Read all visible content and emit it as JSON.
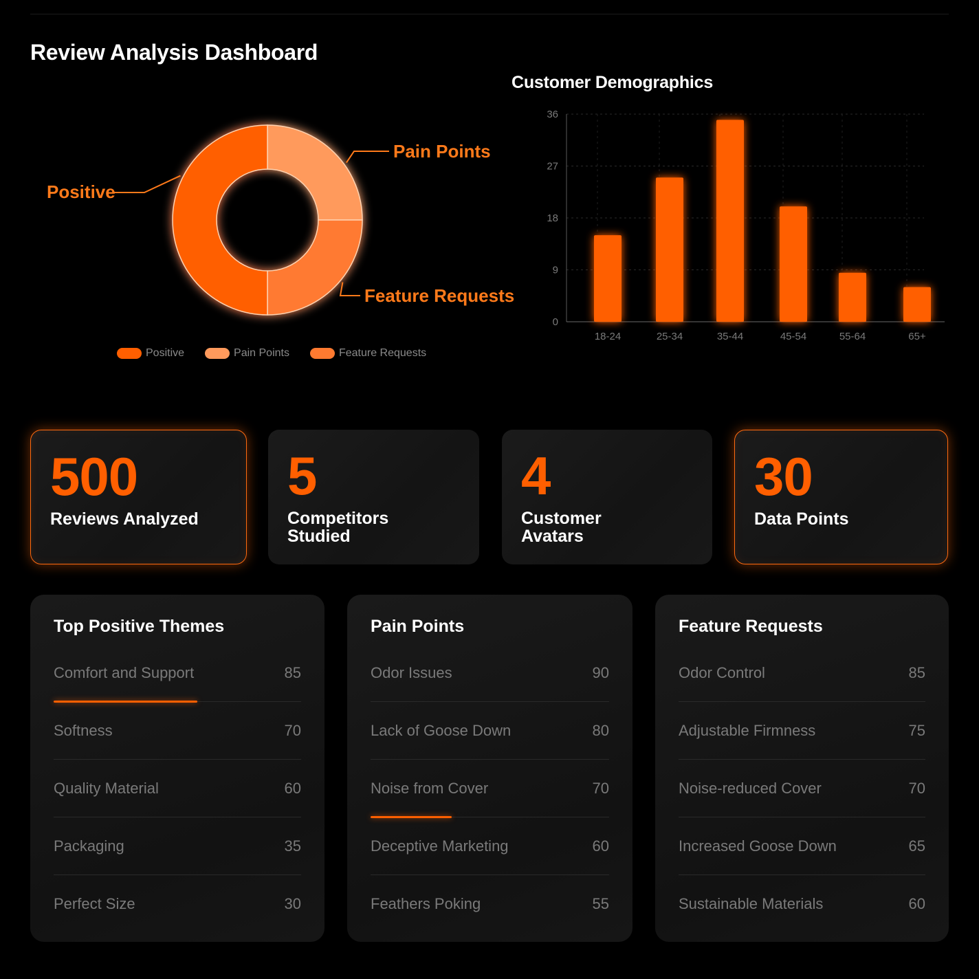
{
  "header": {
    "title": "Review Analysis Dashboard"
  },
  "colors": {
    "accent": "#ff5f00",
    "positive": "#ff5f00",
    "pain_points": "#ff9a5c",
    "feature_requests": "#ff7a30",
    "background": "#000000",
    "card": "#161616"
  },
  "chart_data": [
    {
      "type": "pie",
      "style": "donut",
      "title": "",
      "labels": [
        "Positive",
        "Pain Points",
        "Feature Requests"
      ],
      "values": [
        50,
        25,
        25
      ],
      "colors": [
        "#ff5f00",
        "#ff9a5c",
        "#ff7a30"
      ],
      "legend": {
        "placement": "bottom",
        "entries": [
          "Positive",
          "Pain Points",
          "Feature Requests"
        ]
      }
    },
    {
      "type": "bar",
      "title": "Customer Demographics",
      "categories": [
        "18-24",
        "25-34",
        "35-44",
        "45-54",
        "55-64",
        "65+"
      ],
      "values": [
        15,
        25,
        35,
        20,
        8.5,
        6
      ],
      "yticks": [
        "0",
        "9",
        "18",
        "27",
        "36"
      ],
      "ylim": [
        0,
        36
      ],
      "xlabel": "",
      "ylabel": "",
      "grid": true,
      "color": "#ff5f00"
    }
  ],
  "kpis": [
    {
      "value": "500",
      "label": "Reviews Analyzed",
      "highlight": true
    },
    {
      "value": "5",
      "label": "Competitors Studied",
      "highlight": false
    },
    {
      "value": "4",
      "label": "Customer Avatars",
      "highlight": false
    },
    {
      "value": "30",
      "label": "Data Points",
      "highlight": true
    }
  ],
  "lists": [
    {
      "title": "Top Positive Themes",
      "accent_row": 0,
      "accent_fraction": 0.58,
      "items": [
        {
          "label": "Comfort and Support",
          "value": "85"
        },
        {
          "label": "Softness",
          "value": "70"
        },
        {
          "label": "Quality Material",
          "value": "60"
        },
        {
          "label": "Packaging",
          "value": "35"
        },
        {
          "label": "Perfect Size",
          "value": "30"
        }
      ]
    },
    {
      "title": "Pain Points",
      "accent_row": 2,
      "accent_fraction": 0.34,
      "items": [
        {
          "label": "Odor Issues",
          "value": "90"
        },
        {
          "label": "Lack of Goose Down",
          "value": "80"
        },
        {
          "label": "Noise from Cover",
          "value": "70"
        },
        {
          "label": "Deceptive Marketing",
          "value": "60"
        },
        {
          "label": "Feathers Poking",
          "value": "55"
        }
      ]
    },
    {
      "title": "Feature Requests",
      "accent_row": -1,
      "accent_fraction": 0,
      "items": [
        {
          "label": "Odor Control",
          "value": "85"
        },
        {
          "label": "Adjustable Firmness",
          "value": "75"
        },
        {
          "label": "Noise-reduced Cover",
          "value": "70"
        },
        {
          "label": "Increased Goose Down",
          "value": "65"
        },
        {
          "label": "Sustainable Materials",
          "value": "60"
        }
      ]
    }
  ]
}
